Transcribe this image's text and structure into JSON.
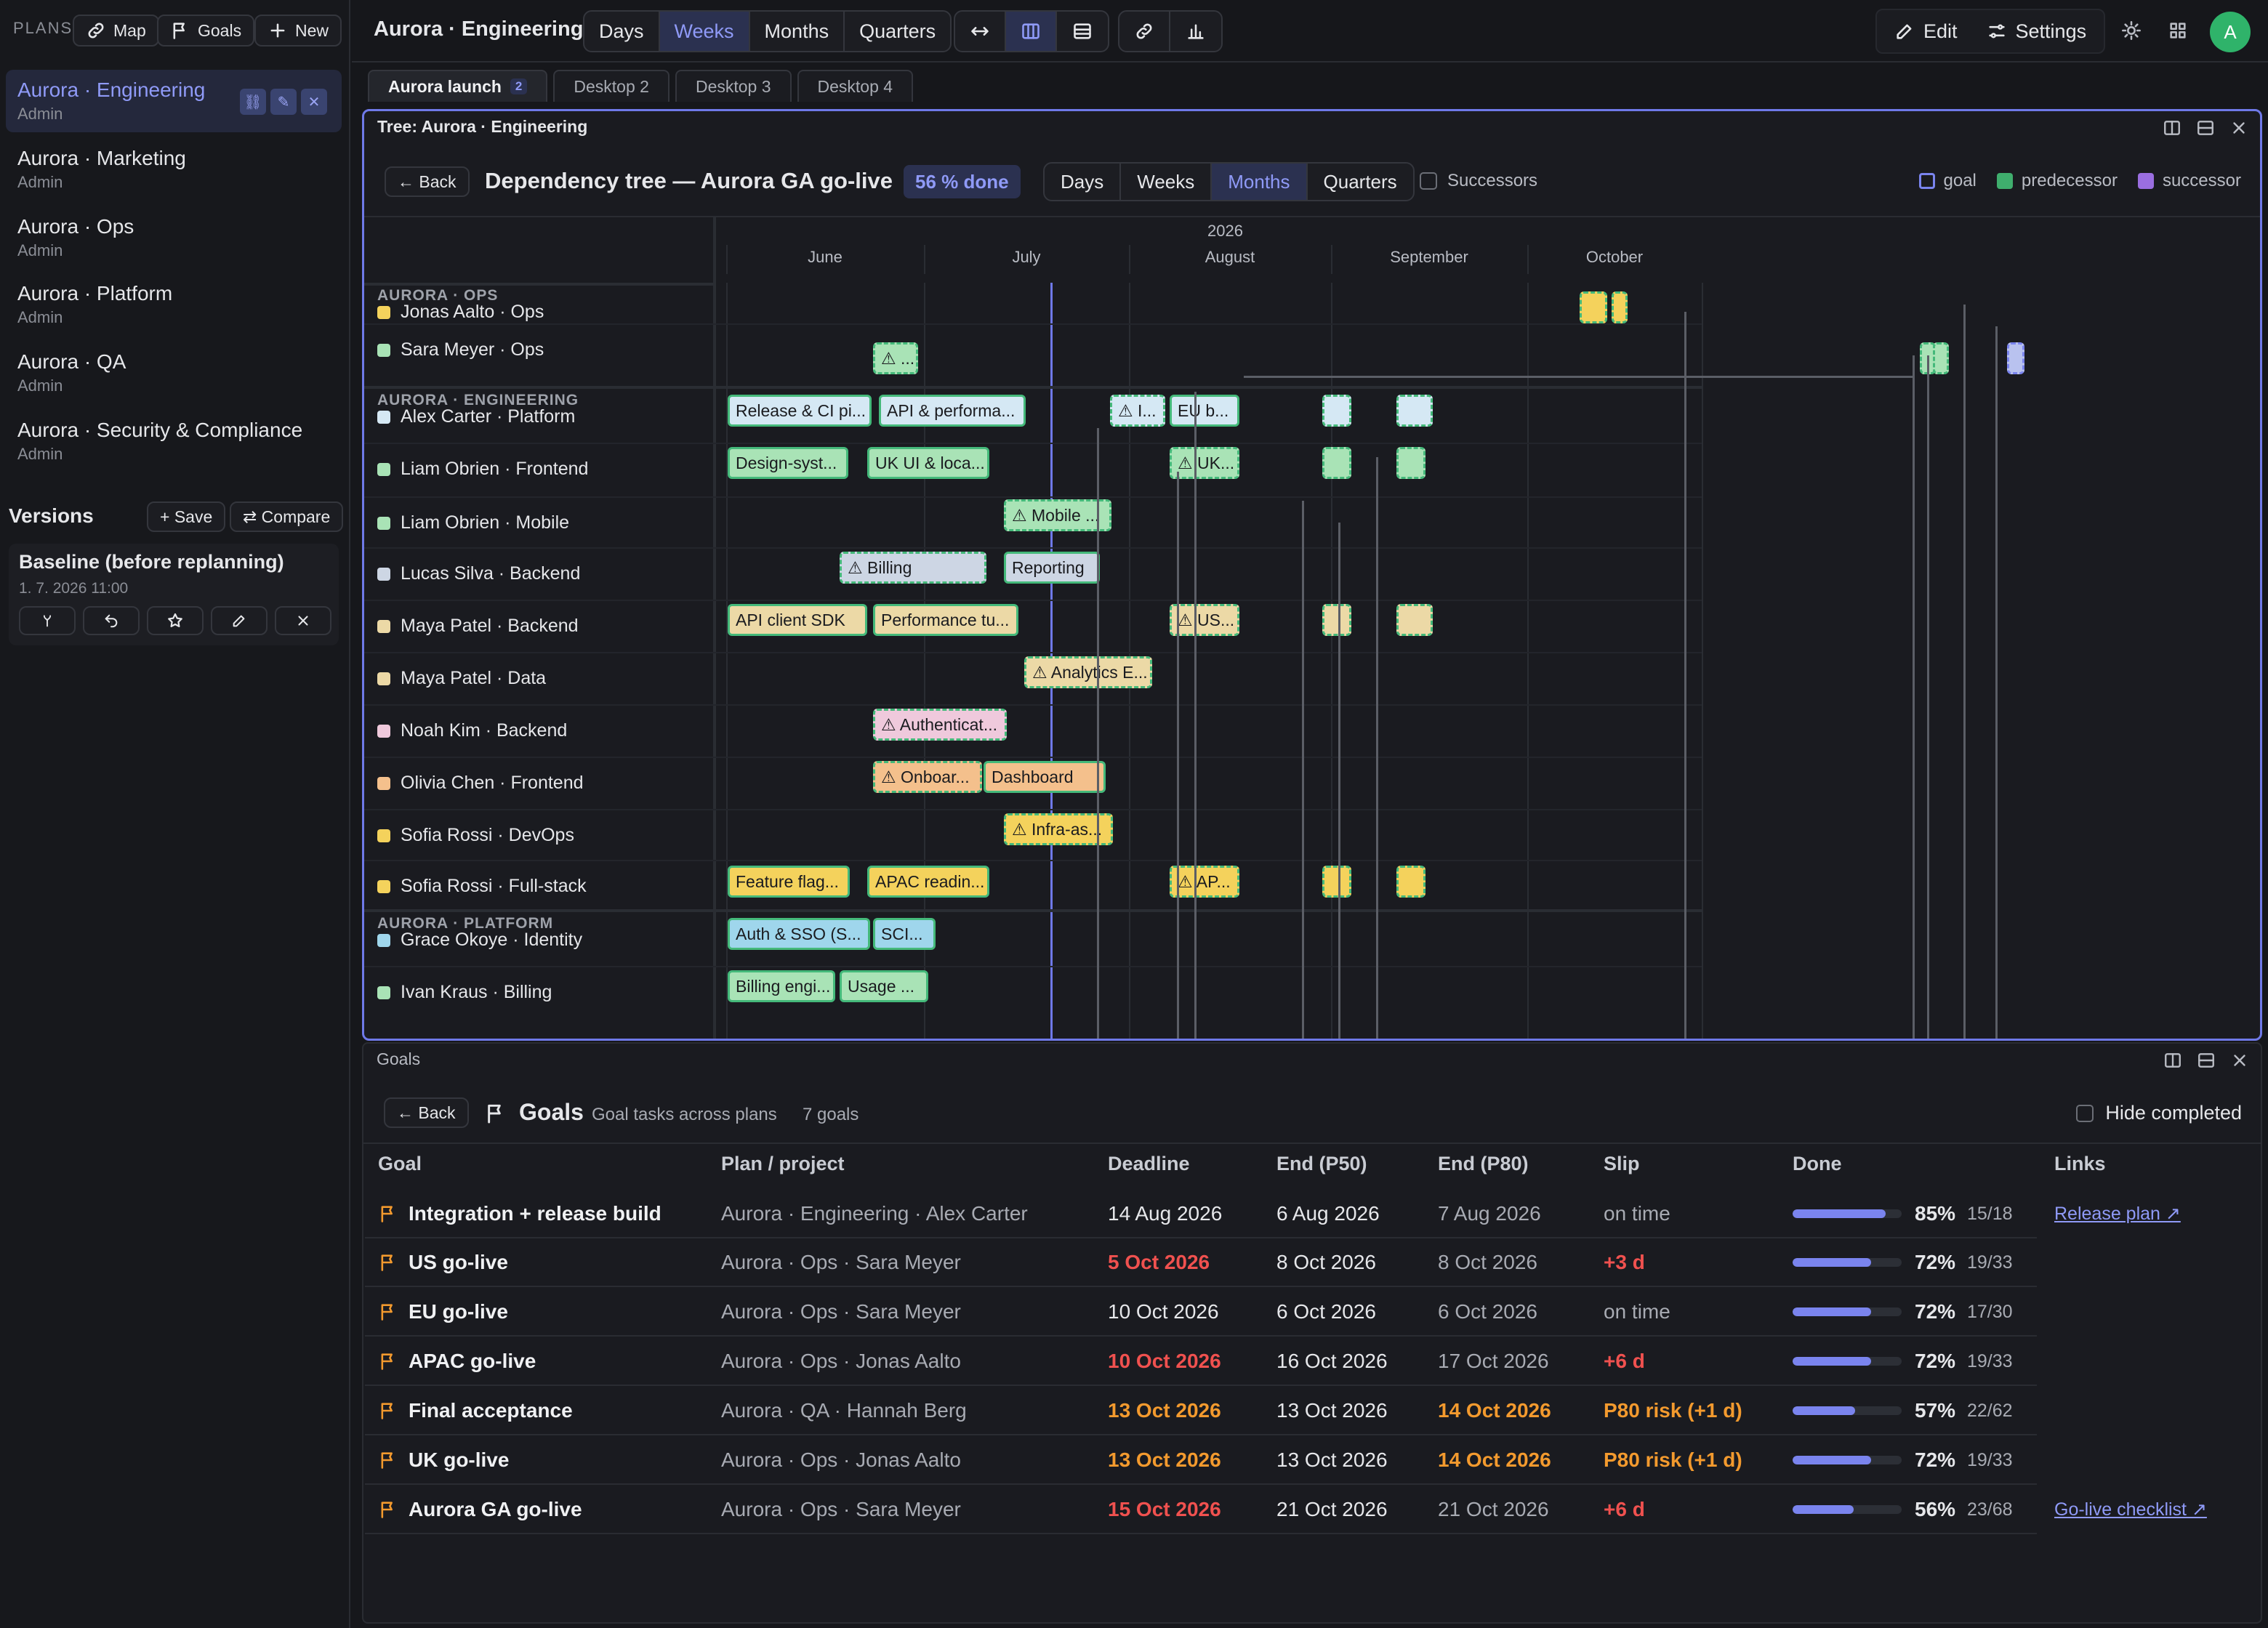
{
  "sidebar": {
    "plans_label": "PLANS",
    "map_btn": "Map",
    "goals_btn": "Goals",
    "new_btn": "New",
    "plans": [
      {
        "name": "Aurora · Engineering",
        "role": "Admin"
      },
      {
        "name": "Aurora · Marketing",
        "role": "Admin"
      },
      {
        "name": "Aurora · Ops",
        "role": "Admin"
      },
      {
        "name": "Aurora · Platform",
        "role": "Admin"
      },
      {
        "name": "Aurora · QA",
        "role": "Admin"
      },
      {
        "name": "Aurora · Security & Compliance",
        "role": "Admin"
      }
    ],
    "versions_title": "Versions",
    "save_btn": "+ Save",
    "compare_btn": "⇄ Compare",
    "baseline_name": "Baseline (before replanning)",
    "baseline_date": "1. 7. 2026 11:00"
  },
  "topbar": {
    "title": "Aurora · Engineering",
    "scale": [
      "Days",
      "Weeks",
      "Months",
      "Quarters"
    ],
    "active_scale": "Weeks",
    "edit": "Edit",
    "settings": "Settings",
    "avatar": "A"
  },
  "tabs": [
    {
      "label": "Aurora launch",
      "badge": "2"
    },
    {
      "label": "Desktop 2"
    },
    {
      "label": "Desktop 3"
    },
    {
      "label": "Desktop 4"
    }
  ],
  "tree": {
    "panel_title": "Tree: Aurora · Engineering",
    "back": "← Back",
    "heading": "Dependency tree — Aurora GA go-live",
    "done_badge": "56 % done",
    "scale": [
      "Days",
      "Weeks",
      "Months",
      "Quarters"
    ],
    "active_scale": "Months",
    "successors_label": "Successors",
    "legend": [
      {
        "label": "goal",
        "color": "#7a84ee"
      },
      {
        "label": "predecessor",
        "color": "#3fae6d"
      },
      {
        "label": "successor",
        "color": "#9a6ee0"
      }
    ],
    "year": "2026",
    "months": [
      "June",
      "July",
      "August",
      "September",
      "October"
    ],
    "groups": [
      {
        "label": "AURORA · OPS"
      },
      {
        "label": "AURORA · ENGINEERING"
      },
      {
        "label": "AURORA · PLATFORM"
      }
    ],
    "resources": [
      {
        "name": "Jonas Aalto · Ops",
        "color": "#f4d25c"
      },
      {
        "name": "Sara Meyer · Ops",
        "color": "#a9e3b6"
      },
      {
        "name": "Alex Carter · Platform",
        "color": "#d5e8f4"
      },
      {
        "name": "Liam Obrien · Frontend",
        "color": "#a9e3b6"
      },
      {
        "name": "Liam Obrien · Mobile",
        "color": "#a9e3b6"
      },
      {
        "name": "Lucas Silva · Backend",
        "color": "#cdd6e4"
      },
      {
        "name": "Maya Patel · Backend",
        "color": "#ecd9a6"
      },
      {
        "name": "Maya Patel · Data",
        "color": "#ecd9a6"
      },
      {
        "name": "Noah Kim · Backend",
        "color": "#efc9dc"
      },
      {
        "name": "Olivia Chen · Frontend",
        "color": "#f4c08c"
      },
      {
        "name": "Sofia Rossi · DevOps",
        "color": "#f4d25c"
      },
      {
        "name": "Sofia Rossi · Full-stack",
        "color": "#f4d25c"
      },
      {
        "name": "Grace Okoye · Identity",
        "color": "#9fd6ec"
      },
      {
        "name": "Ivan Kraus · Billing",
        "color": "#a9e3b6"
      }
    ],
    "bars": [
      {
        "text": "",
        "color": "#f4d25c",
        "row": 0
      },
      {
        "text": "",
        "color": "#f4d25c",
        "row": 0
      },
      {
        "text": "⚠ ...",
        "color": "#a9e3b6",
        "row": 1
      },
      {
        "text": "",
        "color": "#a9e3b6",
        "row": 1
      },
      {
        "text": "",
        "color": "#a9e3b6",
        "row": 1
      },
      {
        "text": "",
        "color": "#b9c2ef",
        "row": 1
      },
      {
        "text": "Release & CI pi...",
        "color": "#d5e8f4",
        "row": 2
      },
      {
        "text": "API & performa...",
        "color": "#d5e8f4",
        "row": 2
      },
      {
        "text": "⚠ I...",
        "color": "#d5e8f4",
        "row": 2
      },
      {
        "text": "EU b...",
        "color": "#d5e8f4",
        "row": 2
      },
      {
        "text": "",
        "color": "#d5e8f4",
        "row": 2
      },
      {
        "text": "",
        "color": "#d5e8f4",
        "row": 2
      },
      {
        "text": "Design-syst...",
        "color": "#a9e3b6",
        "row": 3
      },
      {
        "text": "UK UI & loca...",
        "color": "#a9e3b6",
        "row": 3
      },
      {
        "text": "⚠ UK...",
        "color": "#a9e3b6",
        "row": 3
      },
      {
        "text": "",
        "color": "#a9e3b6",
        "row": 3
      },
      {
        "text": "",
        "color": "#a9e3b6",
        "row": 3
      },
      {
        "text": "⚠ Mobile ...",
        "color": "#a9e3b6",
        "row": 4
      },
      {
        "text": "⚠ Billing",
        "color": "#cdd6e4",
        "row": 5
      },
      {
        "text": "Reporting",
        "color": "#cdd6e4",
        "row": 5
      },
      {
        "text": "API client SDK",
        "color": "#ecd9a6",
        "row": 6
      },
      {
        "text": "Performance tu...",
        "color": "#ecd9a6",
        "row": 6
      },
      {
        "text": "⚠ US...",
        "color": "#ecd9a6",
        "row": 6
      },
      {
        "text": "",
        "color": "#ecd9a6",
        "row": 6
      },
      {
        "text": "",
        "color": "#ecd9a6",
        "row": 6
      },
      {
        "text": "⚠ Analytics E...",
        "color": "#ecd9a6",
        "row": 7
      },
      {
        "text": "⚠ Authenticat...",
        "color": "#efc9dc",
        "row": 8
      },
      {
        "text": "⚠ Onboar...",
        "color": "#f4c08c",
        "row": 9
      },
      {
        "text": "Dashboard",
        "color": "#f4c08c",
        "row": 9
      },
      {
        "text": "⚠ Infra-as...",
        "color": "#f4d25c",
        "row": 10
      },
      {
        "text": "Feature flag...",
        "color": "#f4d25c",
        "row": 11
      },
      {
        "text": "APAC readin...",
        "color": "#f4d25c",
        "row": 11
      },
      {
        "text": "⚠ AP...",
        "color": "#f4d25c",
        "row": 11
      },
      {
        "text": "",
        "color": "#f4d25c",
        "row": 11
      },
      {
        "text": "",
        "color": "#f4d25c",
        "row": 11
      },
      {
        "text": "Auth & SSO (S...",
        "color": "#9fd6ec",
        "row": 12
      },
      {
        "text": "SCI...",
        "color": "#9fd6ec",
        "row": 12
      },
      {
        "text": "Billing engi...",
        "color": "#a9e3b6",
        "row": 13
      },
      {
        "text": "Usage ...",
        "color": "#a9e3b6",
        "row": 13
      }
    ]
  },
  "goals": {
    "panel_title": "Goals",
    "back": "← Back",
    "heading": "Goals",
    "subtitle": "Goal tasks across plans",
    "count": "7 goals",
    "hide_completed": "Hide completed",
    "columns": [
      "Goal",
      "Plan / project",
      "Deadline",
      "End (P50)",
      "End (P80)",
      "Slip",
      "Done",
      "Links"
    ],
    "rows": [
      {
        "goal": "Integration + release build",
        "plan": "Aurora · Engineering · Alex Carter",
        "deadline": "14 Aug 2026",
        "dl_class": "",
        "p50": "6 Aug 2026",
        "p80": "7 Aug 2026",
        "p80_class": "",
        "slip": "on time",
        "slip_class": "",
        "pct": 85,
        "pct_label": "85%",
        "frac": "15/18",
        "link": "Release plan ↗"
      },
      {
        "goal": "US go-live",
        "plan": "Aurora · Ops · Sara Meyer",
        "deadline": "5 Oct 2026",
        "dl_class": "red",
        "p50": "8 Oct 2026",
        "p80": "8 Oct 2026",
        "p80_class": "",
        "slip": "+3 d",
        "slip_class": "red",
        "pct": 72,
        "pct_label": "72%",
        "frac": "19/33",
        "link": ""
      },
      {
        "goal": "EU go-live",
        "plan": "Aurora · Ops · Sara Meyer",
        "deadline": "10 Oct 2026",
        "dl_class": "",
        "p50": "6 Oct 2026",
        "p80": "6 Oct 2026",
        "p80_class": "",
        "slip": "on time",
        "slip_class": "",
        "pct": 72,
        "pct_label": "72%",
        "frac": "17/30",
        "link": ""
      },
      {
        "goal": "APAC go-live",
        "plan": "Aurora · Ops · Jonas Aalto",
        "deadline": "10 Oct 2026",
        "dl_class": "red",
        "p50": "16 Oct 2026",
        "p80": "17 Oct 2026",
        "p80_class": "",
        "slip": "+6 d",
        "slip_class": "red",
        "pct": 72,
        "pct_label": "72%",
        "frac": "19/33",
        "link": ""
      },
      {
        "goal": "Final acceptance",
        "plan": "Aurora · QA · Hannah Berg",
        "deadline": "13 Oct 2026",
        "dl_class": "orange",
        "p50": "13 Oct 2026",
        "p80": "14 Oct 2026",
        "p80_class": "orange",
        "slip": "P80 risk (+1 d)",
        "slip_class": "orange",
        "pct": 57,
        "pct_label": "57%",
        "frac": "22/62",
        "link": ""
      },
      {
        "goal": "UK go-live",
        "plan": "Aurora · Ops · Jonas Aalto",
        "deadline": "13 Oct 2026",
        "dl_class": "orange",
        "p50": "13 Oct 2026",
        "p80": "14 Oct 2026",
        "p80_class": "orange",
        "slip": "P80 risk (+1 d)",
        "slip_class": "orange",
        "pct": 72,
        "pct_label": "72%",
        "frac": "19/33",
        "link": ""
      },
      {
        "goal": "Aurora GA go-live",
        "plan": "Aurora · Ops · Sara Meyer",
        "deadline": "15 Oct 2026",
        "dl_class": "red",
        "p50": "21 Oct 2026",
        "p80": "21 Oct 2026",
        "p80_class": "",
        "slip": "+6 d",
        "slip_class": "red",
        "pct": 56,
        "pct_label": "56%",
        "frac": "23/68",
        "link": "Go-live checklist ↗"
      }
    ]
  }
}
